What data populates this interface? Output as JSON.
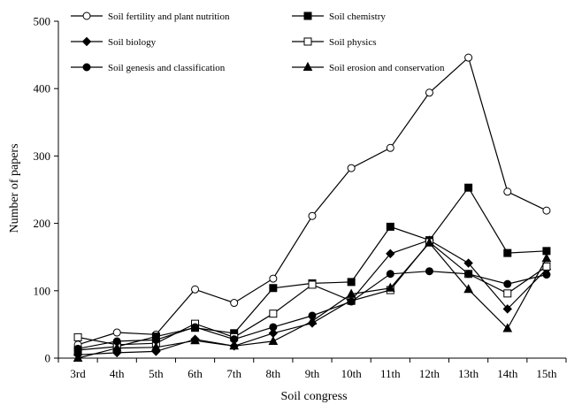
{
  "chart_data": {
    "type": "line",
    "title": "",
    "xlabel": "Soil congress",
    "ylabel": "Number of papers",
    "categories": [
      "3rd",
      "4th",
      "5th",
      "6th",
      "7th",
      "8th",
      "9th",
      "10th",
      "11th",
      "12th",
      "13th",
      "14th",
      "15th"
    ],
    "ylim": [
      0,
      500
    ],
    "yticks": [
      0,
      100,
      200,
      300,
      400,
      500
    ],
    "grid": false,
    "legend_placement": "top-left",
    "series": [
      {
        "name": "Soil fertility and plant nutrition",
        "marker": "circle-open",
        "values": [
          20,
          38,
          35,
          102,
          82,
          118,
          211,
          282,
          312,
          394,
          446,
          247,
          219
        ]
      },
      {
        "name": "Soil chemistry",
        "marker": "square-filled",
        "values": [
          12,
          17,
          32,
          45,
          37,
          104,
          111,
          113,
          195,
          175,
          253,
          156,
          159
        ]
      },
      {
        "name": "Soil biology",
        "marker": "diamond-filled",
        "values": [
          5,
          8,
          10,
          28,
          18,
          37,
          52,
          86,
          155,
          175,
          141,
          73,
          132
        ]
      },
      {
        "name": "Soil physics",
        "marker": "square-open",
        "values": [
          31,
          20,
          22,
          51,
          31,
          66,
          109,
          85,
          101,
          172,
          125,
          96,
          136
        ]
      },
      {
        "name": "Soil genesis and classification",
        "marker": "circle-filled",
        "values": [
          14,
          25,
          27,
          46,
          28,
          46,
          63,
          84,
          125,
          129,
          125,
          110,
          124
        ]
      },
      {
        "name": "Soil erosion and conservation",
        "marker": "triangle-filled",
        "values": [
          0,
          15,
          16,
          26,
          18,
          25,
          55,
          95,
          104,
          171,
          102,
          44,
          148
        ]
      }
    ]
  }
}
